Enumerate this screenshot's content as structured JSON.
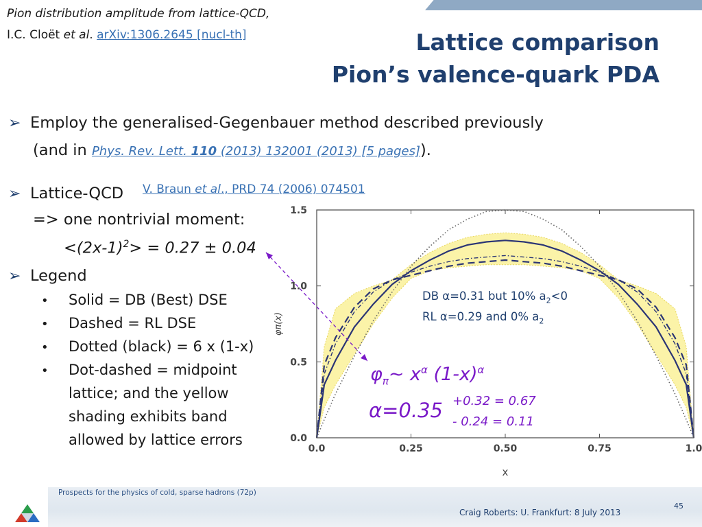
{
  "header": {
    "ref_line1": "Pion distribution amplitude from lattice-QCD,",
    "ref_line2_author": "I.C. Cloët ",
    "ref_line2_etal": "et al",
    "ref_line2_dot": ". ",
    "ref_link": "arXiv:1306.2645 [nucl-th]",
    "title_line1": "Lattice comparison",
    "title_line2": "Pion’s valence-quark PDA"
  },
  "bullets": {
    "b1_line1": "Employ the generalised-Gegenbauer method described previously",
    "b1_line2_pre": "(and in ",
    "b1_link_journal": "Phys. Rev. Lett. ",
    "b1_link_vol": "110",
    "b1_link_rest": " (2013) 132001 (2013) [5 pages]",
    "b1_line2_post": ").",
    "b2_label": "Lattice-QCD ",
    "b2_link_pre": "V. Braun ",
    "b2_link_etal": "et al",
    "b2_link_rest": "., PRD 74 (2006) 074501",
    "b2_line2": "=> one nontrivial moment:",
    "b2_moment_pre": "<(2x-1)",
    "b2_moment_sup": "2",
    "b2_moment_post": "> = 0.27 ± 0.04",
    "b3_label": "Legend",
    "legend_items": [
      "Solid = DB (Best) DSE",
      "Dashed = RL DSE",
      "Dotted (black) = 6 x (1-x)",
      "Dot-dashed = midpoint",
      "lattice; and the yellow",
      "shading exhibits band",
      "allowed by lattice errors"
    ]
  },
  "annotations": {
    "db_pre": "DB α=0.31 but 10% a",
    "db_sub": "2",
    "db_post": "<0",
    "rl_pre": "RL  α=0.29 and 0% a",
    "rl_sub": "2",
    "phi": "φ",
    "phi_sub": "π",
    "tilde": "~ x",
    "alpha_sup": "α",
    "factor": " (1-x)",
    "alpha_sup2": "α",
    "alpha_val": "α=0.35",
    "plus": "+0.32 = 0.67",
    "minus": "- 0.24 = 0.11"
  },
  "footer": {
    "left": "Prospects for the physics of cold, sparse hadrons (72p)",
    "right": "Craig Roberts: U. Frankfurt: 8 July 2013",
    "page": "45"
  },
  "colors": {
    "title": "#1f3f6e",
    "link": "#3a72b4",
    "curve": "#2b3575",
    "band": "#fbf3a8",
    "band_edge": "#e8d760",
    "formula": "#7a1ac8"
  },
  "chart_data": {
    "type": "line",
    "xlabel": "x",
    "ylabel": "φπ(x)",
    "xlim": [
      0,
      1
    ],
    "ylim": [
      0,
      1.5
    ],
    "xticks": [
      "0.0",
      "0.25",
      "0.50",
      "0.75",
      "1.0"
    ],
    "yticks": [
      "0.0",
      "0.5",
      "1.0",
      "1.5"
    ],
    "grid": false,
    "series": [
      {
        "style": "solid",
        "x": [
          0,
          0.02,
          0.05,
          0.1,
          0.15,
          0.2,
          0.25,
          0.3,
          0.35,
          0.4,
          0.45,
          0.5,
          0.55,
          0.6,
          0.65,
          0.7,
          0.75,
          0.8,
          0.85,
          0.9,
          0.95,
          0.98,
          1
        ],
        "y": [
          0,
          0.35,
          0.51,
          0.73,
          0.88,
          1.01,
          1.1,
          1.17,
          1.23,
          1.27,
          1.29,
          1.3,
          1.29,
          1.27,
          1.23,
          1.17,
          1.1,
          1.01,
          0.88,
          0.73,
          0.51,
          0.35,
          0
        ]
      },
      {
        "style": "dashed",
        "x": [
          0,
          0.02,
          0.05,
          0.1,
          0.15,
          0.2,
          0.25,
          0.3,
          0.35,
          0.4,
          0.45,
          0.5,
          0.55,
          0.6,
          0.65,
          0.7,
          0.75,
          0.8,
          0.85,
          0.9,
          0.95,
          0.98,
          1
        ],
        "y": [
          0,
          0.48,
          0.66,
          0.86,
          0.98,
          1.04,
          1.07,
          1.1,
          1.13,
          1.15,
          1.16,
          1.17,
          1.16,
          1.15,
          1.13,
          1.1,
          1.07,
          1.04,
          0.98,
          0.86,
          0.66,
          0.48,
          0
        ]
      },
      {
        "style": "dotted",
        "x": [
          0,
          0.02,
          0.05,
          0.1,
          0.15,
          0.2,
          0.25,
          0.3,
          0.35,
          0.4,
          0.45,
          0.5,
          0.55,
          0.6,
          0.65,
          0.7,
          0.75,
          0.8,
          0.85,
          0.9,
          0.95,
          0.98,
          1
        ],
        "y": [
          0,
          0.12,
          0.29,
          0.54,
          0.77,
          0.96,
          1.13,
          1.26,
          1.37,
          1.44,
          1.49,
          1.5,
          1.49,
          1.44,
          1.37,
          1.26,
          1.13,
          0.96,
          0.77,
          0.54,
          0.29,
          0.12,
          0
        ]
      },
      {
        "style": "dot-dashed",
        "x": [
          0,
          0.02,
          0.05,
          0.1,
          0.15,
          0.2,
          0.25,
          0.3,
          0.35,
          0.4,
          0.45,
          0.5,
          0.55,
          0.6,
          0.65,
          0.7,
          0.75,
          0.8,
          0.85,
          0.9,
          0.95,
          0.98,
          1
        ],
        "y": [
          0,
          0.42,
          0.62,
          0.83,
          0.96,
          1.04,
          1.09,
          1.13,
          1.16,
          1.18,
          1.19,
          1.2,
          1.19,
          1.18,
          1.16,
          1.13,
          1.09,
          1.04,
          0.96,
          0.83,
          0.62,
          0.42,
          0
        ]
      }
    ],
    "band": {
      "x": [
        0,
        0.02,
        0.05,
        0.1,
        0.15,
        0.2,
        0.25,
        0.3,
        0.35,
        0.4,
        0.45,
        0.5,
        0.55,
        0.6,
        0.65,
        0.7,
        0.75,
        0.8,
        0.85,
        0.9,
        0.95,
        0.98,
        1
      ],
      "upper": [
        0,
        0.6,
        0.85,
        0.95,
        1.0,
        1.04,
        1.14,
        1.22,
        1.28,
        1.32,
        1.34,
        1.35,
        1.34,
        1.32,
        1.28,
        1.22,
        1.14,
        1.04,
        1.0,
        0.95,
        0.85,
        0.6,
        0
      ],
      "lower": [
        0,
        0.2,
        0.35,
        0.55,
        0.75,
        0.92,
        1.05,
        1.1,
        1.12,
        1.13,
        1.14,
        1.14,
        1.14,
        1.13,
        1.12,
        1.1,
        1.05,
        0.92,
        0.75,
        0.55,
        0.35,
        0.2,
        0
      ]
    }
  }
}
